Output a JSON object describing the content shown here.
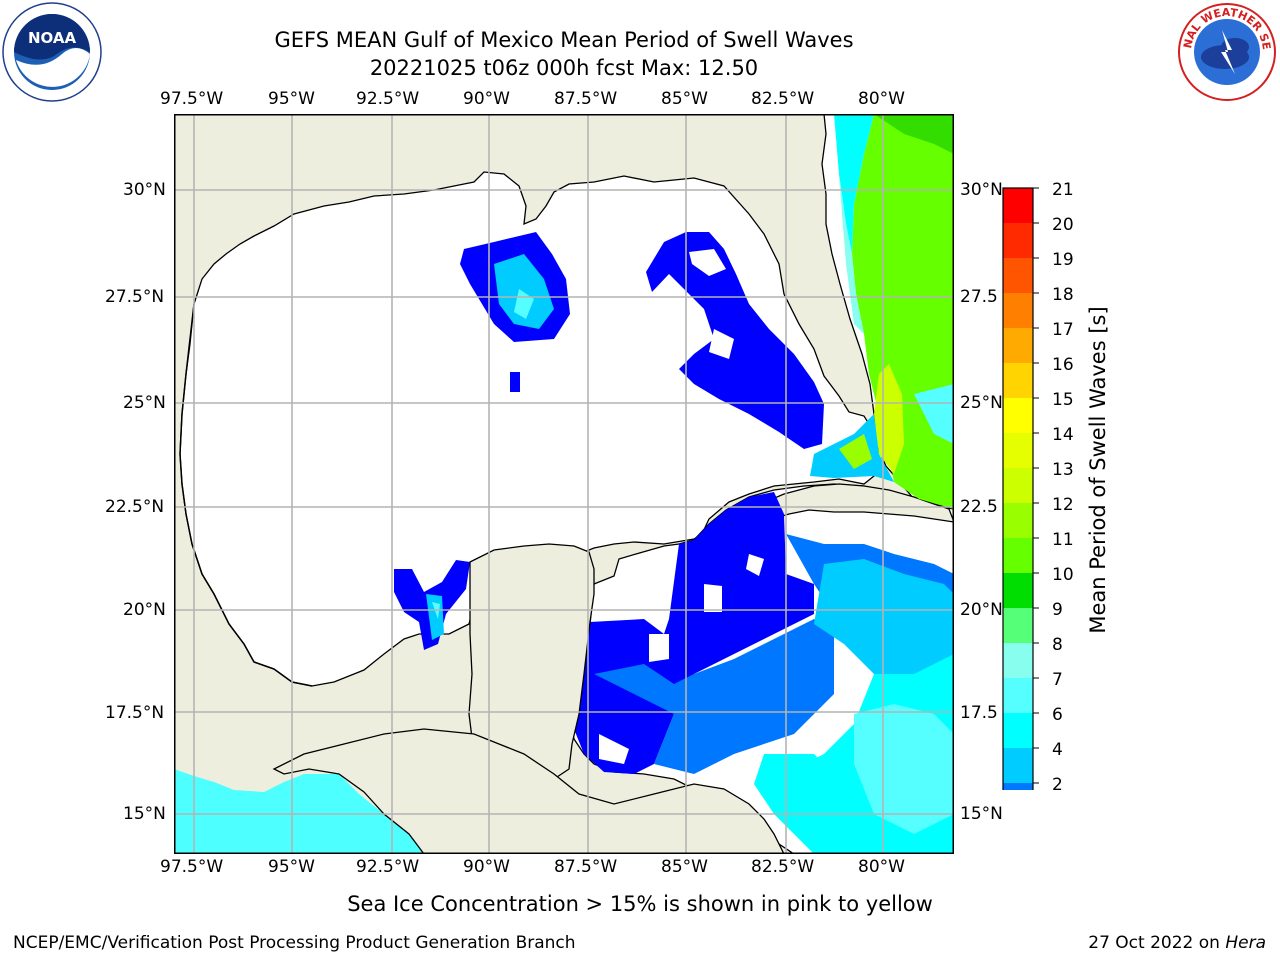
{
  "header": {
    "title_line1": "GEFS MEAN Gulf of Mexico Mean Period of Swell Waves",
    "title_line2": "20221025 t06z 000h fcst   Max: 12.50"
  },
  "logos": {
    "left": {
      "name": "noaa-logo",
      "text": "NOAA",
      "ring_text": "NATIONAL OCEANIC AND ATMOSPHERIC ADMINISTRATION · U.S. DEPARTMENT OF COMMERCE"
    },
    "right": {
      "name": "nws-logo",
      "ring_text": "NATIONAL WEATHER SERVICE"
    }
  },
  "map": {
    "lon_ticks": [
      "97.5°W",
      "95°W",
      "92.5°W",
      "90°W",
      "87.5°W",
      "85°W",
      "82.5°W",
      "80°W"
    ],
    "lat_ticks_left": [
      "30°N",
      "27.5°N",
      "25°N",
      "22.5°N",
      "20°N",
      "17.5°N",
      "15°N"
    ],
    "lat_ticks_right": [
      "30°N",
      "27.5",
      "25°N",
      "22.5",
      "20°N",
      "17.5",
      "15°N"
    ],
    "colors": {
      "land": "#eeeedf",
      "water": "#ffffff",
      "grid": "#b4b4b4",
      "coast": "#000000"
    }
  },
  "colorbar": {
    "label": "Mean Period of Swell Waves [s]",
    "ticks": [
      "21",
      "20",
      "19",
      "18",
      "17",
      "16",
      "15",
      "14",
      "13",
      "12",
      "11",
      "10",
      "9",
      "8",
      "7",
      "6",
      "4",
      "2"
    ],
    "colors": [
      "#ff0000",
      "#ff2a00",
      "#ff5500",
      "#ff8000",
      "#ffaa00",
      "#ffd400",
      "#ffff00",
      "#e6ff00",
      "#ccff00",
      "#99ff00",
      "#66ff00",
      "#00dd00",
      "#55ff77",
      "#88ffee",
      "#55ffff",
      "#00ffff",
      "#00ccff",
      "#0077ff",
      "#0000ff"
    ]
  },
  "note": "Sea Ice Concentration > 15% is shown in pink to yellow",
  "footer": {
    "left": "NCEP/EMC/Verification Post Processing Product Generation Branch",
    "right_date": "27 Oct 2022 on ",
    "right_host": "Hera"
  }
}
